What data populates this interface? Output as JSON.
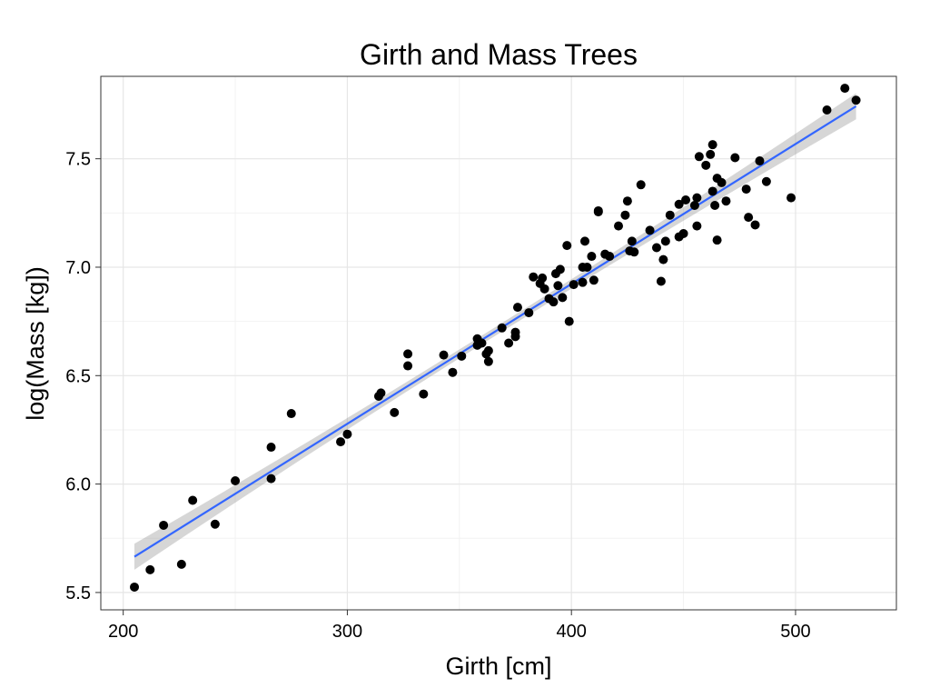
{
  "chart_data": {
    "type": "scatter",
    "title": "Girth and Mass Trees",
    "xlabel": "Girth [cm]",
    "ylabel": "log(Mass [kg])",
    "xlim": [
      190,
      545
    ],
    "ylim": [
      5.42,
      7.88
    ],
    "x_ticks": [
      200,
      300,
      400,
      500
    ],
    "x_tick_labels": [
      "200",
      "300",
      "400",
      "500"
    ],
    "y_ticks": [
      5.5,
      6.0,
      6.5,
      7.0,
      7.5
    ],
    "y_tick_labels": [
      "5.5",
      "6.0",
      "6.5",
      "7.0",
      "7.5"
    ],
    "grid": true,
    "legend": "none",
    "colors": {
      "points": "#000000",
      "fit_line": "#3366FF",
      "ribbon": "#999999",
      "grid": "#e6e6e6",
      "panel_border": "#333333"
    },
    "fit": {
      "method": "linear",
      "x": [
        205,
        527
      ],
      "y": [
        5.665,
        7.742
      ],
      "ci_halfwidth": [
        0.06,
        0.06
      ],
      "ci_halfwidth_mid": 0.02
    },
    "points": [
      [
        205,
        5.525
      ],
      [
        212,
        5.605
      ],
      [
        218,
        5.81
      ],
      [
        226,
        5.63
      ],
      [
        231,
        5.925
      ],
      [
        241,
        5.815
      ],
      [
        250,
        6.015
      ],
      [
        266,
        6.025
      ],
      [
        266,
        6.17
      ],
      [
        275,
        6.325
      ],
      [
        297,
        6.195
      ],
      [
        300,
        6.23
      ],
      [
        314,
        6.405
      ],
      [
        315,
        6.42
      ],
      [
        321,
        6.33
      ],
      [
        327,
        6.6
      ],
      [
        327,
        6.545
      ],
      [
        334,
        6.415
      ],
      [
        343,
        6.595
      ],
      [
        347,
        6.515
      ],
      [
        351,
        6.59
      ],
      [
        358,
        6.67
      ],
      [
        358,
        6.64
      ],
      [
        360,
        6.65
      ],
      [
        362,
        6.6
      ],
      [
        363,
        6.565
      ],
      [
        363,
        6.615
      ],
      [
        369,
        6.72
      ],
      [
        372,
        6.65
      ],
      [
        375,
        6.7
      ],
      [
        375,
        6.68
      ],
      [
        376,
        6.815
      ],
      [
        381,
        6.79
      ],
      [
        383,
        6.955
      ],
      [
        386,
        6.925
      ],
      [
        387,
        6.95
      ],
      [
        388,
        6.9
      ],
      [
        390,
        6.855
      ],
      [
        392,
        6.84
      ],
      [
        393,
        6.97
      ],
      [
        394,
        6.915
      ],
      [
        395,
        6.99
      ],
      [
        396,
        6.86
      ],
      [
        398,
        7.1
      ],
      [
        399,
        6.75
      ],
      [
        401,
        6.92
      ],
      [
        405,
        7.0
      ],
      [
        405,
        6.93
      ],
      [
        406,
        7.12
      ],
      [
        407,
        7.0
      ],
      [
        409,
        7.05
      ],
      [
        410,
        6.94
      ],
      [
        412,
        7.255
      ],
      [
        412,
        7.26
      ],
      [
        415,
        7.06
      ],
      [
        417,
        7.05
      ],
      [
        421,
        7.19
      ],
      [
        424,
        7.24
      ],
      [
        425,
        7.305
      ],
      [
        426,
        7.075
      ],
      [
        427,
        7.12
      ],
      [
        428,
        7.07
      ],
      [
        431,
        7.38
      ],
      [
        435,
        7.17
      ],
      [
        438,
        7.09
      ],
      [
        440,
        6.935
      ],
      [
        441,
        7.035
      ],
      [
        442,
        7.12
      ],
      [
        444,
        7.24
      ],
      [
        448,
        7.14
      ],
      [
        448,
        7.29
      ],
      [
        450,
        7.155
      ],
      [
        451,
        7.31
      ],
      [
        455,
        7.285
      ],
      [
        456,
        7.19
      ],
      [
        456,
        7.32
      ],
      [
        457,
        7.51
      ],
      [
        460,
        7.47
      ],
      [
        462,
        7.52
      ],
      [
        463,
        7.35
      ],
      [
        463,
        7.565
      ],
      [
        464,
        7.285
      ],
      [
        465,
        7.125
      ],
      [
        465,
        7.41
      ],
      [
        467,
        7.39
      ],
      [
        469,
        7.305
      ],
      [
        473,
        7.505
      ],
      [
        478,
        7.36
      ],
      [
        479,
        7.23
      ],
      [
        482,
        7.195
      ],
      [
        484,
        7.49
      ],
      [
        487,
        7.395
      ],
      [
        498,
        7.32
      ],
      [
        514,
        7.725
      ],
      [
        522,
        7.825
      ],
      [
        527,
        7.77
      ]
    ]
  }
}
